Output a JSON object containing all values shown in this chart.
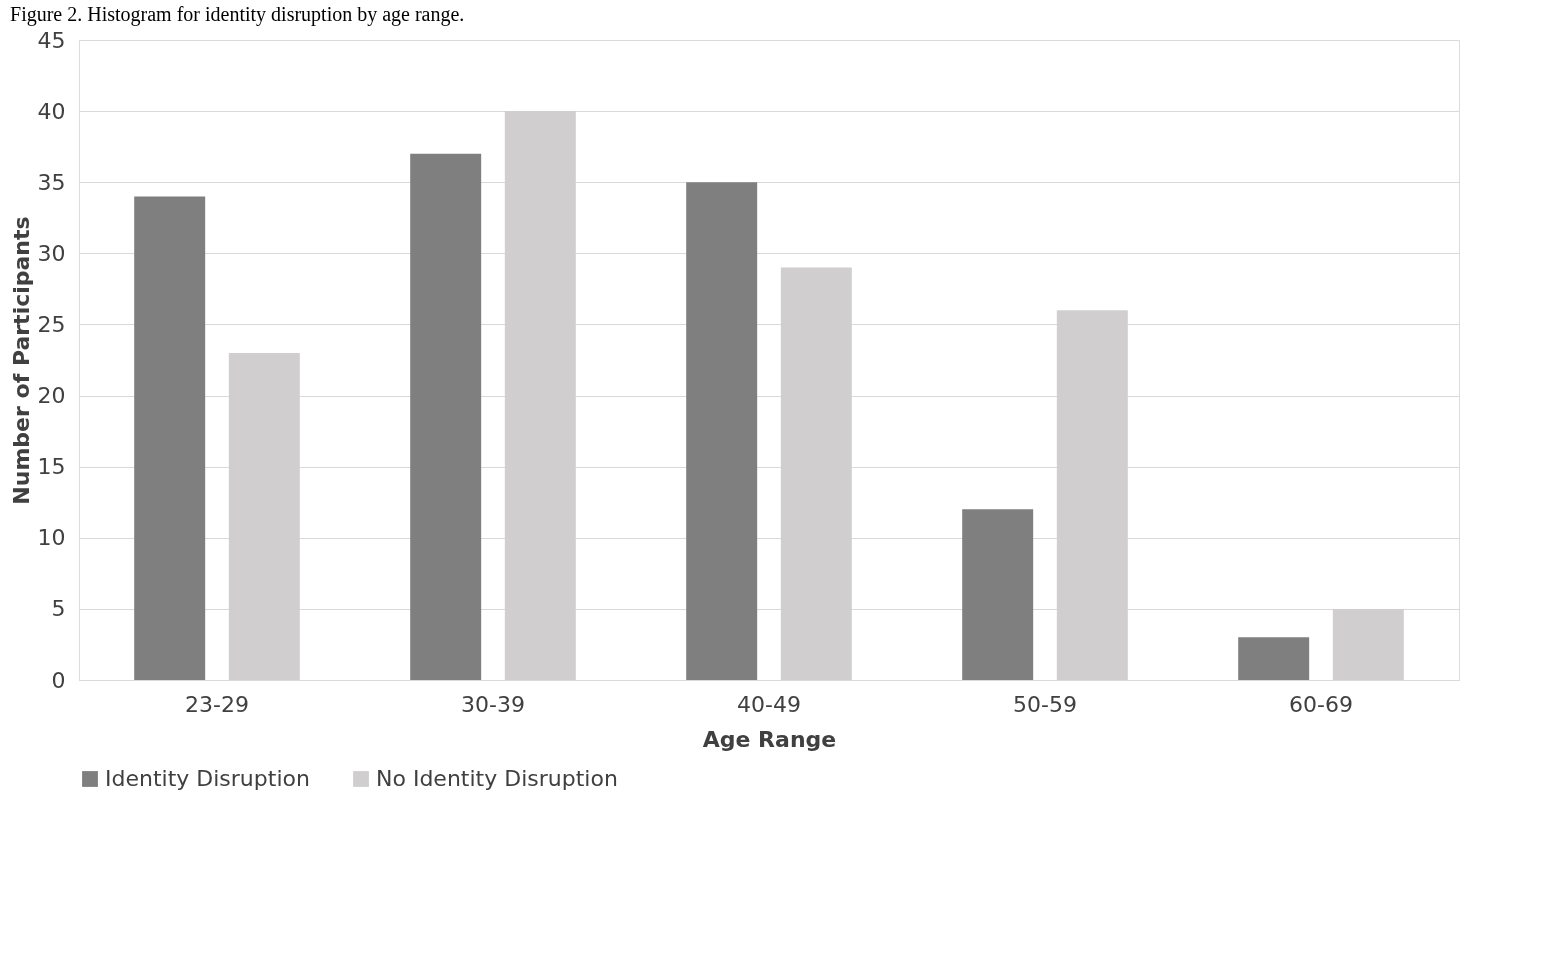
{
  "chart_data": {
    "type": "bar",
    "title": "Figure 2. Histogram for identity disruption by age range.",
    "xlabel": "Age Range",
    "ylabel": "Number of Participants",
    "categories": [
      "23-29",
      "30-39",
      "40-49",
      "50-59",
      "60-69"
    ],
    "series": [
      {
        "name": "Identity Disruption",
        "color": "#7f7f7f",
        "values": [
          34,
          37,
          35,
          12,
          3
        ]
      },
      {
        "name": "No Identity Disruption",
        "color": "#d0cece",
        "values": [
          23,
          40,
          29,
          26,
          5
        ]
      }
    ],
    "ylim": [
      0,
      45
    ],
    "yticks": [
      0,
      5,
      10,
      15,
      20,
      25,
      30,
      35,
      40,
      45
    ],
    "grid": "y",
    "legend": "bottom"
  }
}
